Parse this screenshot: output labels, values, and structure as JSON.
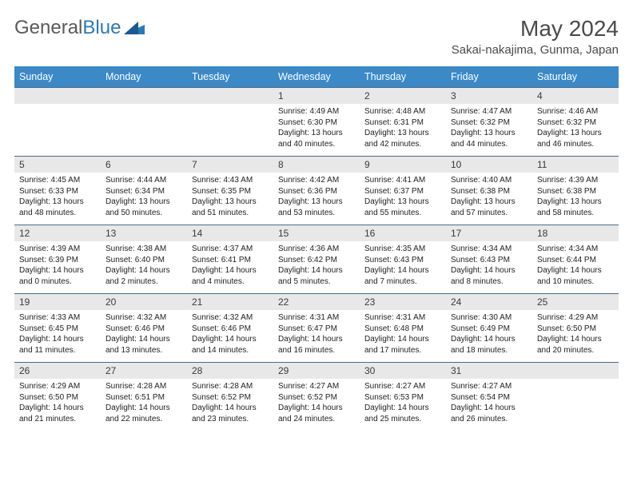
{
  "brand": {
    "part1": "General",
    "part2": "Blue"
  },
  "title": "May 2024",
  "location": "Sakai-nakajima, Gunma, Japan",
  "colors": {
    "header_bg": "#3b89c7",
    "header_text": "#ffffff",
    "daynum_bg": "#e8e8e8",
    "week_border": "#4a6a8a",
    "title_color": "#4a4a4a",
    "body_text": "#222222"
  },
  "dow": [
    "Sunday",
    "Monday",
    "Tuesday",
    "Wednesday",
    "Thursday",
    "Friday",
    "Saturday"
  ],
  "weeks": [
    [
      {
        "n": "",
        "sunrise": "",
        "sunset": "",
        "dayl1": "",
        "dayl2": ""
      },
      {
        "n": "",
        "sunrise": "",
        "sunset": "",
        "dayl1": "",
        "dayl2": ""
      },
      {
        "n": "",
        "sunrise": "",
        "sunset": "",
        "dayl1": "",
        "dayl2": ""
      },
      {
        "n": "1",
        "sunrise": "Sunrise: 4:49 AM",
        "sunset": "Sunset: 6:30 PM",
        "dayl1": "Daylight: 13 hours",
        "dayl2": "and 40 minutes."
      },
      {
        "n": "2",
        "sunrise": "Sunrise: 4:48 AM",
        "sunset": "Sunset: 6:31 PM",
        "dayl1": "Daylight: 13 hours",
        "dayl2": "and 42 minutes."
      },
      {
        "n": "3",
        "sunrise": "Sunrise: 4:47 AM",
        "sunset": "Sunset: 6:32 PM",
        "dayl1": "Daylight: 13 hours",
        "dayl2": "and 44 minutes."
      },
      {
        "n": "4",
        "sunrise": "Sunrise: 4:46 AM",
        "sunset": "Sunset: 6:32 PM",
        "dayl1": "Daylight: 13 hours",
        "dayl2": "and 46 minutes."
      }
    ],
    [
      {
        "n": "5",
        "sunrise": "Sunrise: 4:45 AM",
        "sunset": "Sunset: 6:33 PM",
        "dayl1": "Daylight: 13 hours",
        "dayl2": "and 48 minutes."
      },
      {
        "n": "6",
        "sunrise": "Sunrise: 4:44 AM",
        "sunset": "Sunset: 6:34 PM",
        "dayl1": "Daylight: 13 hours",
        "dayl2": "and 50 minutes."
      },
      {
        "n": "7",
        "sunrise": "Sunrise: 4:43 AM",
        "sunset": "Sunset: 6:35 PM",
        "dayl1": "Daylight: 13 hours",
        "dayl2": "and 51 minutes."
      },
      {
        "n": "8",
        "sunrise": "Sunrise: 4:42 AM",
        "sunset": "Sunset: 6:36 PM",
        "dayl1": "Daylight: 13 hours",
        "dayl2": "and 53 minutes."
      },
      {
        "n": "9",
        "sunrise": "Sunrise: 4:41 AM",
        "sunset": "Sunset: 6:37 PM",
        "dayl1": "Daylight: 13 hours",
        "dayl2": "and 55 minutes."
      },
      {
        "n": "10",
        "sunrise": "Sunrise: 4:40 AM",
        "sunset": "Sunset: 6:38 PM",
        "dayl1": "Daylight: 13 hours",
        "dayl2": "and 57 minutes."
      },
      {
        "n": "11",
        "sunrise": "Sunrise: 4:39 AM",
        "sunset": "Sunset: 6:38 PM",
        "dayl1": "Daylight: 13 hours",
        "dayl2": "and 58 minutes."
      }
    ],
    [
      {
        "n": "12",
        "sunrise": "Sunrise: 4:39 AM",
        "sunset": "Sunset: 6:39 PM",
        "dayl1": "Daylight: 14 hours",
        "dayl2": "and 0 minutes."
      },
      {
        "n": "13",
        "sunrise": "Sunrise: 4:38 AM",
        "sunset": "Sunset: 6:40 PM",
        "dayl1": "Daylight: 14 hours",
        "dayl2": "and 2 minutes."
      },
      {
        "n": "14",
        "sunrise": "Sunrise: 4:37 AM",
        "sunset": "Sunset: 6:41 PM",
        "dayl1": "Daylight: 14 hours",
        "dayl2": "and 4 minutes."
      },
      {
        "n": "15",
        "sunrise": "Sunrise: 4:36 AM",
        "sunset": "Sunset: 6:42 PM",
        "dayl1": "Daylight: 14 hours",
        "dayl2": "and 5 minutes."
      },
      {
        "n": "16",
        "sunrise": "Sunrise: 4:35 AM",
        "sunset": "Sunset: 6:43 PM",
        "dayl1": "Daylight: 14 hours",
        "dayl2": "and 7 minutes."
      },
      {
        "n": "17",
        "sunrise": "Sunrise: 4:34 AM",
        "sunset": "Sunset: 6:43 PM",
        "dayl1": "Daylight: 14 hours",
        "dayl2": "and 8 minutes."
      },
      {
        "n": "18",
        "sunrise": "Sunrise: 4:34 AM",
        "sunset": "Sunset: 6:44 PM",
        "dayl1": "Daylight: 14 hours",
        "dayl2": "and 10 minutes."
      }
    ],
    [
      {
        "n": "19",
        "sunrise": "Sunrise: 4:33 AM",
        "sunset": "Sunset: 6:45 PM",
        "dayl1": "Daylight: 14 hours",
        "dayl2": "and 11 minutes."
      },
      {
        "n": "20",
        "sunrise": "Sunrise: 4:32 AM",
        "sunset": "Sunset: 6:46 PM",
        "dayl1": "Daylight: 14 hours",
        "dayl2": "and 13 minutes."
      },
      {
        "n": "21",
        "sunrise": "Sunrise: 4:32 AM",
        "sunset": "Sunset: 6:46 PM",
        "dayl1": "Daylight: 14 hours",
        "dayl2": "and 14 minutes."
      },
      {
        "n": "22",
        "sunrise": "Sunrise: 4:31 AM",
        "sunset": "Sunset: 6:47 PM",
        "dayl1": "Daylight: 14 hours",
        "dayl2": "and 16 minutes."
      },
      {
        "n": "23",
        "sunrise": "Sunrise: 4:31 AM",
        "sunset": "Sunset: 6:48 PM",
        "dayl1": "Daylight: 14 hours",
        "dayl2": "and 17 minutes."
      },
      {
        "n": "24",
        "sunrise": "Sunrise: 4:30 AM",
        "sunset": "Sunset: 6:49 PM",
        "dayl1": "Daylight: 14 hours",
        "dayl2": "and 18 minutes."
      },
      {
        "n": "25",
        "sunrise": "Sunrise: 4:29 AM",
        "sunset": "Sunset: 6:50 PM",
        "dayl1": "Daylight: 14 hours",
        "dayl2": "and 20 minutes."
      }
    ],
    [
      {
        "n": "26",
        "sunrise": "Sunrise: 4:29 AM",
        "sunset": "Sunset: 6:50 PM",
        "dayl1": "Daylight: 14 hours",
        "dayl2": "and 21 minutes."
      },
      {
        "n": "27",
        "sunrise": "Sunrise: 4:28 AM",
        "sunset": "Sunset: 6:51 PM",
        "dayl1": "Daylight: 14 hours",
        "dayl2": "and 22 minutes."
      },
      {
        "n": "28",
        "sunrise": "Sunrise: 4:28 AM",
        "sunset": "Sunset: 6:52 PM",
        "dayl1": "Daylight: 14 hours",
        "dayl2": "and 23 minutes."
      },
      {
        "n": "29",
        "sunrise": "Sunrise: 4:27 AM",
        "sunset": "Sunset: 6:52 PM",
        "dayl1": "Daylight: 14 hours",
        "dayl2": "and 24 minutes."
      },
      {
        "n": "30",
        "sunrise": "Sunrise: 4:27 AM",
        "sunset": "Sunset: 6:53 PM",
        "dayl1": "Daylight: 14 hours",
        "dayl2": "and 25 minutes."
      },
      {
        "n": "31",
        "sunrise": "Sunrise: 4:27 AM",
        "sunset": "Sunset: 6:54 PM",
        "dayl1": "Daylight: 14 hours",
        "dayl2": "and 26 minutes."
      },
      {
        "n": "",
        "sunrise": "",
        "sunset": "",
        "dayl1": "",
        "dayl2": ""
      }
    ]
  ]
}
